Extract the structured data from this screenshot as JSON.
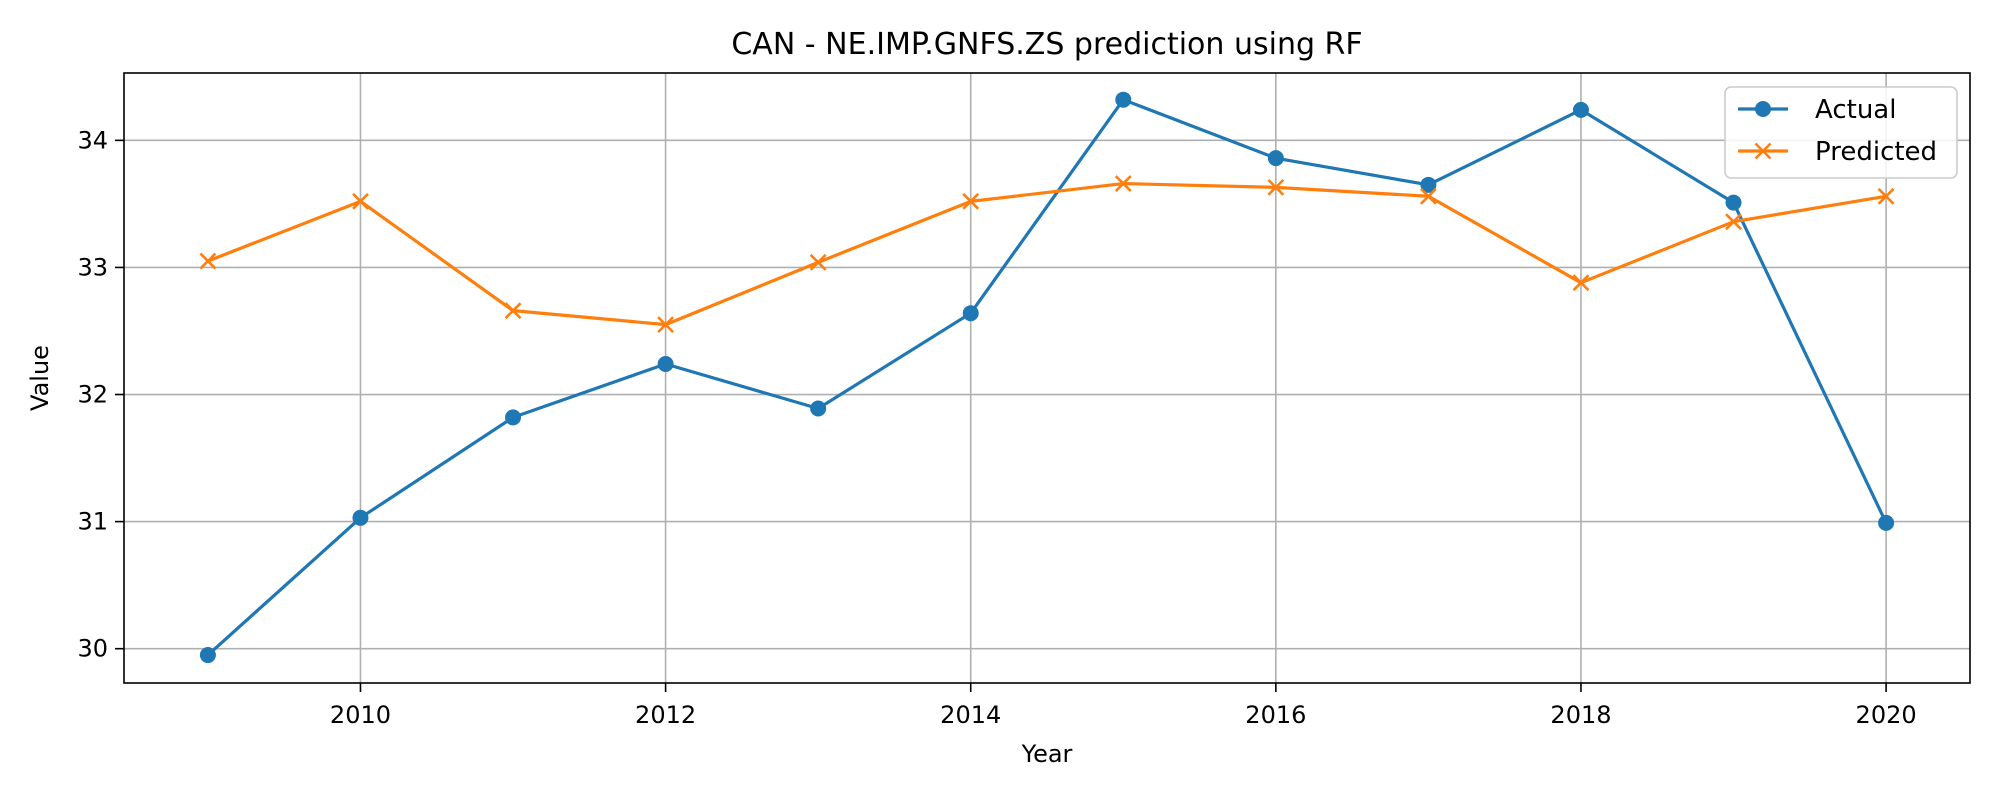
{
  "chart_data": {
    "type": "line",
    "title": "CAN - NE.IMP.GNFS.ZS prediction using RF",
    "xlabel": "Year",
    "ylabel": "Value",
    "x": [
      2009,
      2010,
      2011,
      2012,
      2013,
      2014,
      2015,
      2016,
      2017,
      2018,
      2019,
      2020
    ],
    "xlim": [
      2008.45,
      2020.55
    ],
    "ylim": [
      29.73,
      34.53
    ],
    "xticks": [
      2010,
      2012,
      2014,
      2016,
      2018,
      2020
    ],
    "yticks": [
      30,
      31,
      32,
      33,
      34
    ],
    "grid": true,
    "legend_position": "top-right",
    "series": [
      {
        "name": "Actual",
        "color": "#1f77b4",
        "marker": "circle",
        "values": [
          29.95,
          31.03,
          31.82,
          32.24,
          31.89,
          32.64,
          34.32,
          33.86,
          33.65,
          34.24,
          33.51,
          30.99
        ]
      },
      {
        "name": "Predicted",
        "color": "#ff7f0e",
        "marker": "x",
        "values": [
          33.05,
          33.52,
          32.66,
          32.55,
          33.04,
          33.52,
          33.66,
          33.63,
          33.56,
          32.88,
          33.36,
          33.56
        ]
      }
    ]
  }
}
